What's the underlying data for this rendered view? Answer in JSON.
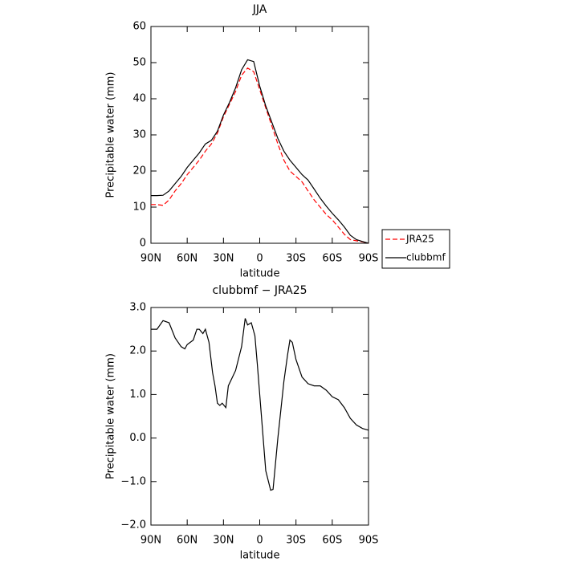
{
  "chart_data": [
    {
      "type": "line",
      "title": "JJA",
      "xlabel": "latitude",
      "ylabel": "Precipitable water (mm)",
      "x": [
        90,
        85,
        80,
        75,
        70,
        65,
        60,
        55,
        50,
        45,
        40,
        35,
        30,
        25,
        20,
        15,
        10,
        5,
        0,
        -5,
        -10,
        -15,
        -20,
        -25,
        -30,
        -35,
        -40,
        -45,
        -50,
        -55,
        -60,
        -65,
        -70,
        -75,
        -80,
        -85,
        -90
      ],
      "series": [
        {
          "name": "JRA25",
          "color": "#ff0000",
          "dashed": true,
          "values": [
            10.7,
            10.7,
            10.5,
            12,
            14.5,
            16.5,
            19,
            21,
            23,
            25.5,
            27.5,
            30.5,
            35,
            38.5,
            42,
            46.5,
            48.5,
            47.5,
            42.5,
            37.5,
            32.5,
            27.5,
            23,
            20,
            18.5,
            17,
            14.5,
            12,
            10,
            8,
            6.5,
            4.5,
            2.5,
            1,
            0.7,
            0.4,
            0
          ]
        },
        {
          "name": "clubbmf",
          "color": "#000000",
          "dashed": false,
          "values": [
            13.2,
            13.2,
            13.3,
            14.5,
            16.5,
            18.5,
            21,
            23,
            25,
            27.5,
            28.5,
            31,
            35.5,
            39,
            43,
            48,
            50.8,
            50.3,
            43.5,
            38,
            33.5,
            29,
            25.5,
            23,
            21,
            19,
            17.5,
            15,
            12.5,
            10.3,
            8.3,
            6.5,
            4.5,
            2.2,
            1,
            0.5,
            0
          ]
        }
      ],
      "xlim": [
        90,
        -90
      ],
      "xticks": [
        {
          "value": 90,
          "label": "90N"
        },
        {
          "value": 60,
          "label": "60N"
        },
        {
          "value": 30,
          "label": "30N"
        },
        0,
        {
          "value": -30,
          "label": "30S"
        },
        {
          "value": -60,
          "label": "60S"
        },
        {
          "value": -90,
          "label": "90S"
        }
      ],
      "ylim": [
        0,
        60
      ],
      "yticks": [
        0,
        10,
        20,
        30,
        40,
        50,
        60
      ],
      "legend": "right"
    },
    {
      "type": "line",
      "title": "clubbmf − JRA25",
      "xlabel": "latitude",
      "ylabel": "Precipitable water (mm)",
      "x": [
        90,
        85,
        80,
        75,
        70,
        65,
        62,
        60,
        55,
        52,
        50,
        47,
        45,
        42,
        39,
        37,
        35,
        33,
        31,
        28,
        26,
        20,
        15,
        12,
        10,
        7,
        4,
        2,
        -5,
        -9,
        -11,
        -15,
        -20,
        -23,
        -25,
        -27,
        -30,
        -35,
        -40,
        -45,
        -50,
        -55,
        -60,
        -65,
        -70,
        -75,
        -80,
        -85,
        -90
      ],
      "values": [
        2.5,
        2.5,
        2.7,
        2.65,
        2.3,
        2.1,
        2.05,
        2.15,
        2.25,
        2.5,
        2.5,
        2.4,
        2.5,
        2.2,
        1.5,
        1.2,
        0.8,
        0.75,
        0.8,
        0.7,
        1.2,
        1.55,
        2.1,
        2.75,
        2.6,
        2.65,
        2.35,
        1.7,
        -0.75,
        -1.2,
        -1.18,
        0,
        1.3,
        1.9,
        2.25,
        2.2,
        1.8,
        1.4,
        1.25,
        1.2,
        1.2,
        1.1,
        0.95,
        0.88,
        0.7,
        0.45,
        0.3,
        0.22,
        0.18
      ],
      "color": "#000000",
      "xlim": [
        90,
        -90
      ],
      "xticks": [
        {
          "value": 90,
          "label": "90N"
        },
        {
          "value": 60,
          "label": "60N"
        },
        {
          "value": 30,
          "label": "30N"
        },
        0,
        {
          "value": -30,
          "label": "30S"
        },
        {
          "value": -60,
          "label": "60S"
        },
        {
          "value": -90,
          "label": "90S"
        }
      ],
      "ylim": [
        -2,
        3
      ],
      "yticks": [
        {
          "value": -2,
          "label": "−2.0"
        },
        {
          "value": -1,
          "label": "−1.0"
        },
        {
          "value": 0,
          "label": "0.0"
        },
        {
          "value": 1,
          "label": "1.0"
        },
        {
          "value": 2,
          "label": "2.0"
        },
        {
          "value": 3,
          "label": "3.0"
        }
      ]
    }
  ]
}
